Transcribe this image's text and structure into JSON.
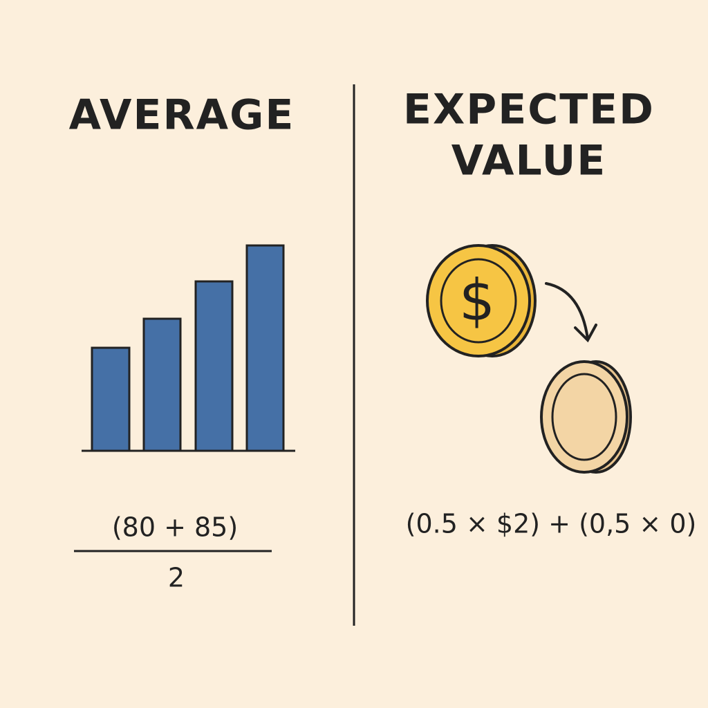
{
  "left": {
    "title": "AVERAGE",
    "numerator": "(80 + 85)",
    "denominator": "2"
  },
  "right": {
    "title_lines": [
      "EXPECTED",
      "VALUE"
    ],
    "coin_symbol": "$",
    "formula": "(0.5 × $2) + (0,5 × 0)"
  }
}
